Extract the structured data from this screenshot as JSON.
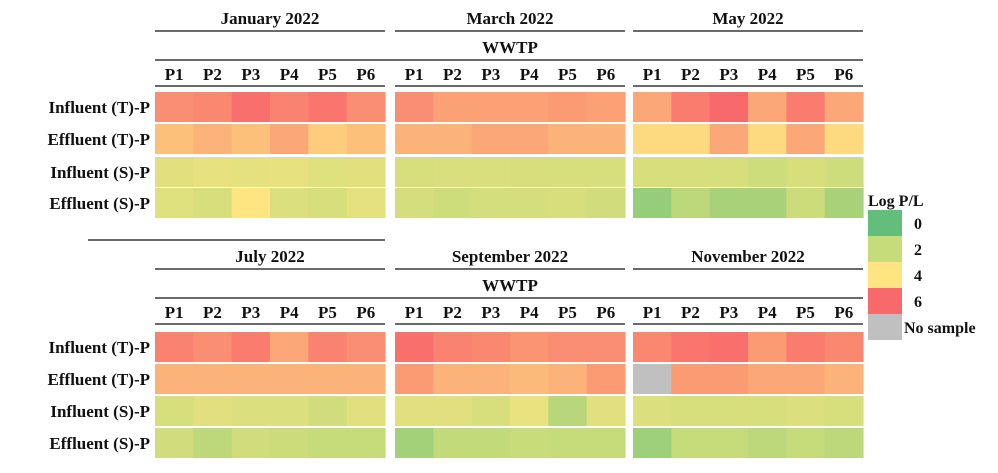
{
  "chart_data": {
    "type": "heatmap",
    "group_label": "WWTP",
    "rows": [
      "Influent (T)-P",
      "Effluent (T)-P",
      "Influent (S)-P",
      "Effluent (S)-P"
    ],
    "columns": [
      "P1",
      "P2",
      "P3",
      "P4",
      "P5",
      "P6"
    ],
    "color_scale": {
      "title": "Log P/L",
      "ticks": [
        0,
        2,
        4,
        6
      ],
      "tick_labels": [
        "0",
        "2",
        "4",
        "6"
      ],
      "colors": {
        "0": "#63be7b",
        "2": "#c6db7a",
        "4": "#fee582",
        "6": "#f8696b"
      },
      "missing_label": "No sample",
      "missing_color": "#c0c0c0"
    },
    "panels": [
      {
        "title": "January 2022",
        "values": [
          [
            5.4,
            5.5,
            5.9,
            5.6,
            5.8,
            5.4
          ],
          [
            4.6,
            4.8,
            4.6,
            5.0,
            4.4,
            4.6
          ],
          [
            3.0,
            3.2,
            3.1,
            3.2,
            2.9,
            3.0
          ],
          [
            2.9,
            2.6,
            4.0,
            2.8,
            2.6,
            3.1
          ]
        ]
      },
      {
        "title": "March 2022",
        "values": [
          [
            5.4,
            5.1,
            5.1,
            5.1,
            5.2,
            5.1
          ],
          [
            4.8,
            4.8,
            5.0,
            5.0,
            4.8,
            4.8
          ],
          [
            2.6,
            2.7,
            2.7,
            2.6,
            2.6,
            2.6
          ],
          [
            2.5,
            2.3,
            2.5,
            2.5,
            2.6,
            2.4
          ]
        ]
      },
      {
        "title": "May 2022",
        "values": [
          [
            5.0,
            5.7,
            6.0,
            5.0,
            5.7,
            5.0
          ],
          [
            4.2,
            4.2,
            5.0,
            4.2,
            5.0,
            4.2
          ],
          [
            2.6,
            2.6,
            2.6,
            2.3,
            2.6,
            2.3
          ],
          [
            1.0,
            1.8,
            1.4,
            1.4,
            2.2,
            1.4
          ]
        ]
      },
      {
        "title": "July 2022",
        "values": [
          [
            5.6,
            5.4,
            5.7,
            5.0,
            5.6,
            5.4
          ],
          [
            4.8,
            4.8,
            4.8,
            4.8,
            4.8,
            4.8
          ],
          [
            2.6,
            3.0,
            2.8,
            2.8,
            2.4,
            3.0
          ],
          [
            2.4,
            1.8,
            2.4,
            2.2,
            2.0,
            2.0
          ]
        ]
      },
      {
        "title": "September 2022",
        "values": [
          [
            5.9,
            5.6,
            5.5,
            5.3,
            5.4,
            5.4
          ],
          [
            5.2,
            4.8,
            4.8,
            4.7,
            4.8,
            5.2
          ],
          [
            3.0,
            3.0,
            2.6,
            3.3,
            1.7,
            3.0
          ],
          [
            1.3,
            1.9,
            1.9,
            2.1,
            2.0,
            2.0
          ]
        ]
      },
      {
        "title": "November 2022",
        "values": [
          [
            5.5,
            5.8,
            5.9,
            5.2,
            5.7,
            5.5
          ],
          [
            null,
            5.2,
            5.2,
            5.0,
            5.0,
            4.8
          ],
          [
            2.8,
            2.6,
            2.6,
            2.6,
            2.8,
            2.6
          ],
          [
            1.2,
            2.0,
            2.0,
            1.8,
            2.0,
            1.8
          ]
        ]
      }
    ]
  }
}
